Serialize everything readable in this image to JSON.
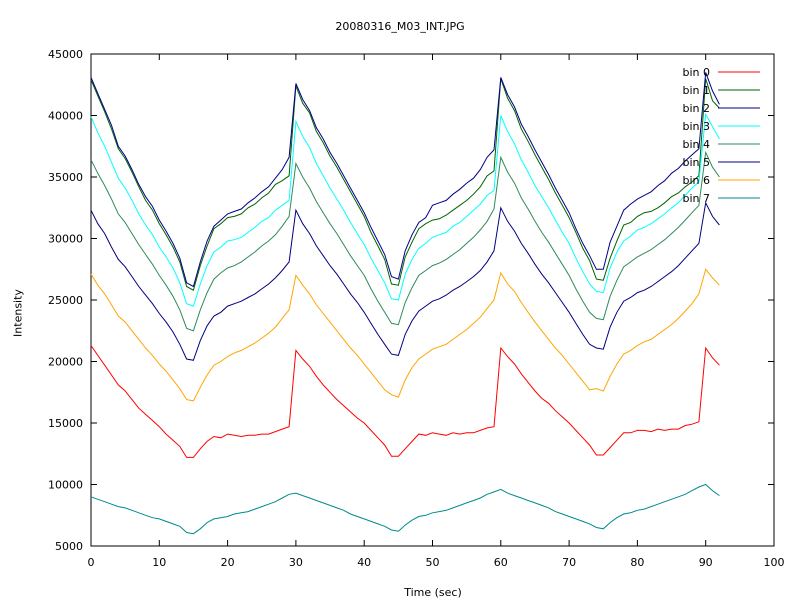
{
  "chart_data": {
    "type": "line",
    "title": "20080316_M03_INT.JPG",
    "xlabel": "Time (sec)",
    "ylabel": "Intensity",
    "xlim": [
      0,
      100
    ],
    "ylim": [
      5000,
      45000
    ],
    "xticks": [
      0,
      10,
      20,
      30,
      40,
      50,
      60,
      70,
      80,
      90,
      100
    ],
    "yticks": [
      5000,
      10000,
      15000,
      20000,
      25000,
      30000,
      35000,
      40000,
      45000
    ],
    "grid": false,
    "legend_position": "top-right",
    "x": [
      0,
      1,
      2,
      3,
      4,
      5,
      6,
      7,
      8,
      9,
      10,
      11,
      12,
      13,
      14,
      15,
      16,
      17,
      18,
      19,
      20,
      21,
      22,
      23,
      24,
      25,
      26,
      27,
      28,
      29,
      30,
      31,
      32,
      33,
      34,
      35,
      36,
      37,
      38,
      39,
      40,
      41,
      42,
      43,
      44,
      45,
      46,
      47,
      48,
      49,
      50,
      51,
      52,
      53,
      54,
      55,
      56,
      57,
      58,
      59,
      60,
      61,
      62,
      63,
      64,
      65,
      66,
      67,
      68,
      69,
      70,
      71,
      72,
      73,
      74,
      75,
      76,
      77,
      78,
      79,
      80,
      81,
      82,
      83,
      84,
      85,
      86,
      87,
      88,
      89,
      90,
      91,
      92
    ],
    "series": [
      {
        "name": "bin 0",
        "color": "#ff0000",
        "values": [
          21300,
          20500,
          19700,
          18900,
          18100,
          17600,
          16900,
          16200,
          15700,
          15200,
          14700,
          14100,
          13600,
          13100,
          12200,
          12200,
          12900,
          13500,
          13900,
          13800,
          14100,
          14000,
          13900,
          14000,
          14000,
          14100,
          14100,
          14300,
          14500,
          14700,
          20900,
          20200,
          19600,
          18800,
          18100,
          17500,
          16900,
          16400,
          15900,
          15400,
          15000,
          14400,
          13800,
          13200,
          12300,
          12300,
          12900,
          13500,
          14100,
          14000,
          14200,
          14100,
          14000,
          14200,
          14100,
          14200,
          14200,
          14400,
          14600,
          14700,
          21100,
          20400,
          19800,
          19000,
          18300,
          17600,
          17000,
          16600,
          16000,
          15500,
          15000,
          14400,
          13800,
          13200,
          12400,
          12400,
          13000,
          13600,
          14200,
          14200,
          14400,
          14400,
          14300,
          14500,
          14400,
          14500,
          14500,
          14800,
          14900,
          15100,
          21100,
          20300,
          19700
        ]
      },
      {
        "name": "bin 1",
        "color": "#006400",
        "values": [
          42900,
          41600,
          40300,
          38900,
          37300,
          36500,
          35400,
          34200,
          33100,
          32300,
          31200,
          30300,
          29300,
          28100,
          26100,
          25800,
          27800,
          29400,
          30800,
          31200,
          31700,
          31800,
          32000,
          32500,
          32800,
          33300,
          33700,
          34400,
          34700,
          35100,
          42400,
          41000,
          40200,
          38700,
          37800,
          36700,
          35800,
          34800,
          33800,
          32800,
          31800,
          30500,
          29400,
          28300,
          26300,
          26200,
          28500,
          29700,
          30800,
          31200,
          31500,
          31600,
          31900,
          32300,
          32700,
          33100,
          33600,
          34200,
          35100,
          35500,
          43000,
          41400,
          40400,
          38900,
          37900,
          36800,
          35800,
          34800,
          33700,
          32700,
          31700,
          30500,
          29200,
          28200,
          26700,
          26600,
          28400,
          29800,
          31100,
          31300,
          31800,
          32100,
          32200,
          32500,
          32900,
          33400,
          33700,
          34200,
          34600,
          35100,
          43000,
          41200,
          40600
        ]
      },
      {
        "name": "bin 2",
        "color": "#00008b",
        "values": [
          43100,
          41800,
          40500,
          39200,
          37500,
          36700,
          35600,
          34400,
          33400,
          32600,
          31500,
          30600,
          29600,
          28400,
          26400,
          26100,
          28100,
          29800,
          31000,
          31500,
          32000,
          32200,
          32400,
          32900,
          33300,
          33800,
          34200,
          34900,
          35600,
          36600,
          42600,
          41300,
          40400,
          39000,
          38100,
          37000,
          36100,
          35100,
          34100,
          33100,
          32100,
          30900,
          29800,
          28700,
          26900,
          26700,
          29000,
          30300,
          31300,
          31700,
          32700,
          32900,
          33100,
          33600,
          34000,
          34500,
          34900,
          35600,
          36600,
          37200,
          43100,
          41700,
          40700,
          39300,
          38300,
          37200,
          36200,
          35200,
          34100,
          33100,
          32100,
          30800,
          29600,
          28600,
          27500,
          27500,
          29700,
          31000,
          32300,
          32800,
          33200,
          33500,
          33800,
          34300,
          34700,
          35300,
          35700,
          36300,
          36800,
          37300,
          43500,
          42000,
          40900
        ]
      },
      {
        "name": "bin 3",
        "color": "#00ffff",
        "values": [
          39900,
          38600,
          37500,
          36200,
          34900,
          34100,
          33100,
          32000,
          31100,
          30300,
          29300,
          28500,
          27600,
          26400,
          24700,
          24500,
          26300,
          27800,
          28900,
          29300,
          29800,
          29900,
          30100,
          30500,
          30900,
          31400,
          31700,
          32300,
          32700,
          33100,
          39500,
          38300,
          37400,
          36100,
          35100,
          34100,
          33200,
          32300,
          31300,
          30400,
          29500,
          28400,
          27400,
          26400,
          25100,
          25000,
          27100,
          28300,
          29200,
          29600,
          30100,
          30300,
          30500,
          31000,
          31300,
          31800,
          32300,
          32800,
          33500,
          33900,
          40000,
          38700,
          37700,
          36400,
          35400,
          34300,
          33400,
          32500,
          31500,
          30500,
          29600,
          28400,
          27300,
          26300,
          25700,
          25600,
          27600,
          28900,
          29800,
          30200,
          30700,
          30900,
          31200,
          31600,
          32000,
          32500,
          32900,
          33500,
          34100,
          34600,
          40100,
          39100,
          38100
        ]
      },
      {
        "name": "bin 4",
        "color": "#2e8b57",
        "values": [
          36400,
          35300,
          34300,
          33200,
          32000,
          31300,
          30400,
          29500,
          28700,
          27900,
          27000,
          26200,
          25300,
          24200,
          22700,
          22500,
          24200,
          25600,
          26700,
          27200,
          27600,
          27800,
          28100,
          28500,
          28900,
          29400,
          29800,
          30300,
          31000,
          31800,
          36100,
          35000,
          34100,
          33000,
          32100,
          31200,
          30400,
          29500,
          28600,
          27800,
          27000,
          25900,
          24900,
          24000,
          23100,
          23000,
          24800,
          26000,
          27000,
          27400,
          27800,
          28000,
          28300,
          28700,
          29100,
          29600,
          30100,
          30700,
          31400,
          32400,
          36600,
          35400,
          34500,
          33300,
          32400,
          31400,
          30500,
          29700,
          28800,
          27900,
          27000,
          25900,
          24900,
          24000,
          23500,
          23400,
          25300,
          26600,
          27700,
          28100,
          28500,
          28800,
          29100,
          29500,
          29900,
          30400,
          30900,
          31500,
          32100,
          32700,
          37000,
          35800,
          35000
        ]
      },
      {
        "name": "bin 5",
        "color": "#000080",
        "values": [
          32300,
          31200,
          30400,
          29300,
          28300,
          27700,
          26900,
          26100,
          25400,
          24700,
          23900,
          23200,
          22400,
          21400,
          20200,
          20100,
          21700,
          22900,
          23700,
          24000,
          24500,
          24700,
          24900,
          25200,
          25500,
          25900,
          26300,
          26800,
          27400,
          28100,
          32300,
          31200,
          30400,
          29400,
          28600,
          27800,
          27100,
          26300,
          25500,
          24800,
          24000,
          23100,
          22200,
          21400,
          20600,
          20500,
          22200,
          23300,
          24100,
          24500,
          24900,
          25100,
          25400,
          25800,
          26100,
          26500,
          26900,
          27400,
          28100,
          29000,
          32500,
          31400,
          30600,
          29600,
          28800,
          27900,
          27100,
          26400,
          25600,
          24800,
          24000,
          23100,
          22200,
          21400,
          21100,
          21000,
          22800,
          24000,
          24900,
          25200,
          25600,
          25800,
          26100,
          26500,
          26900,
          27300,
          27800,
          28400,
          29000,
          29600,
          32900,
          31800,
          31100
        ]
      },
      {
        "name": "bin 6",
        "color": "#ffa500",
        "values": [
          27100,
          26200,
          25500,
          24600,
          23700,
          23200,
          22500,
          21800,
          21100,
          20500,
          19800,
          19200,
          18500,
          17800,
          16900,
          16800,
          17900,
          18900,
          19700,
          20000,
          20400,
          20700,
          20900,
          21200,
          21500,
          21900,
          22300,
          22800,
          23500,
          24200,
          27000,
          26200,
          25500,
          24600,
          23900,
          23200,
          22500,
          21800,
          21100,
          20500,
          19800,
          19100,
          18400,
          17700,
          17300,
          17100,
          18500,
          19500,
          20200,
          20600,
          21000,
          21200,
          21400,
          21800,
          22200,
          22600,
          23100,
          23600,
          24300,
          25000,
          27200,
          26300,
          25700,
          24800,
          24000,
          23200,
          22500,
          21800,
          21100,
          20500,
          19800,
          19100,
          18400,
          17700,
          17800,
          17600,
          18800,
          19800,
          20600,
          20900,
          21300,
          21600,
          21800,
          22200,
          22600,
          23000,
          23500,
          24100,
          24700,
          25500,
          27500,
          26800,
          26200
        ]
      },
      {
        "name": "bin 7",
        "color": "#008b8b",
        "values": [
          9000,
          8800,
          8600,
          8400,
          8200,
          8100,
          7900,
          7700,
          7500,
          7300,
          7200,
          7000,
          6800,
          6600,
          6100,
          6000,
          6400,
          6900,
          7200,
          7300,
          7400,
          7600,
          7700,
          7800,
          8000,
          8200,
          8400,
          8600,
          8900,
          9200,
          9300,
          9100,
          8900,
          8700,
          8500,
          8300,
          8100,
          7900,
          7600,
          7400,
          7200,
          7000,
          6800,
          6600,
          6300,
          6200,
          6700,
          7100,
          7400,
          7500,
          7700,
          7800,
          7900,
          8100,
          8300,
          8500,
          8700,
          8900,
          9200,
          9400,
          9600,
          9300,
          9100,
          8900,
          8700,
          8500,
          8300,
          8100,
          7800,
          7600,
          7400,
          7200,
          7000,
          6800,
          6500,
          6400,
          6900,
          7300,
          7600,
          7700,
          7900,
          8000,
          8200,
          8400,
          8600,
          8800,
          9000,
          9200,
          9500,
          9800,
          10000,
          9500,
          9100
        ]
      }
    ]
  }
}
